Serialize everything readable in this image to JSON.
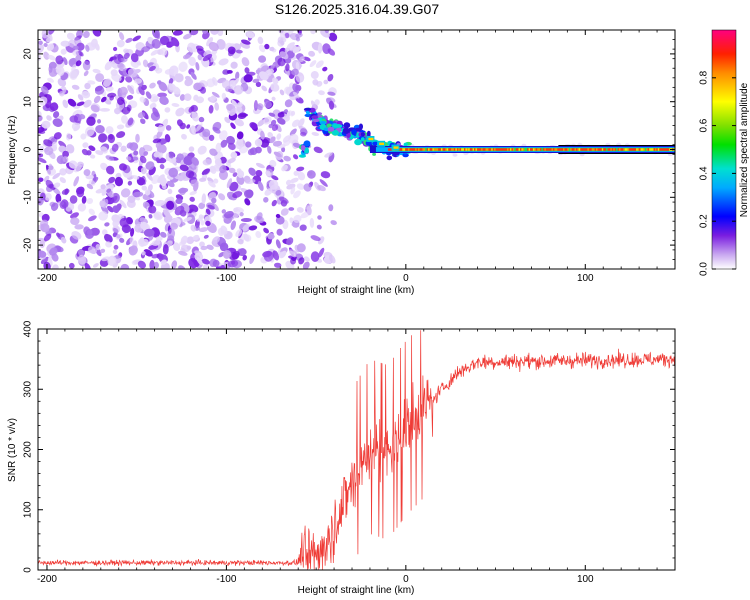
{
  "title": "S126.2025.316.04.39.G07",
  "chart_data": [
    {
      "type": "heatmap",
      "name": "spectrogram",
      "xlabel": "Height of straight line (km)",
      "ylabel": "Frequency (Hz)",
      "xlim": [
        -205,
        150
      ],
      "ylim": [
        -25,
        25
      ],
      "xticks": [
        -200,
        -100,
        0,
        100
      ],
      "yticks": [
        -20,
        -10,
        0,
        10,
        20
      ],
      "colorbar": {
        "label": "Normalized spectral amplitude",
        "range": [
          0.0,
          1.0
        ],
        "ticks": [
          "0.0",
          "0.2",
          "0.4",
          "0.6",
          "0.8"
        ]
      },
      "features": {
        "noise_region_x": [
          -205,
          -50
        ],
        "signal_trace": [
          {
            "x": -55,
            "y": 8
          },
          {
            "x": -45,
            "y": 5
          },
          {
            "x": -35,
            "y": 4
          },
          {
            "x": -25,
            "y": 3
          },
          {
            "x": -18,
            "y": 1
          },
          {
            "x": -10,
            "y": 0
          },
          {
            "x": 0,
            "y": 0
          },
          {
            "x": 50,
            "y": 0
          },
          {
            "x": 100,
            "y": 0
          },
          {
            "x": 150,
            "y": 0
          }
        ]
      }
    },
    {
      "type": "line",
      "name": "snr",
      "xlabel": "Height of straight line (km)",
      "ylabel": "SNR (10 * v/v)",
      "xlim": [
        -205,
        150
      ],
      "ylim": [
        0,
        400
      ],
      "xticks": [
        -200,
        -100,
        0,
        100
      ],
      "yticks": [
        0,
        100,
        200,
        300,
        400
      ],
      "color": "#ef3b36",
      "series": [
        {
          "name": "SNR",
          "profile": [
            {
              "x": -205,
              "y": 12
            },
            {
              "x": -60,
              "y": 12
            },
            {
              "x": -50,
              "y": 25
            },
            {
              "x": -40,
              "y": 70
            },
            {
              "x": -30,
              "y": 150
            },
            {
              "x": -20,
              "y": 200
            },
            {
              "x": -10,
              "y": 190
            },
            {
              "x": 0,
              "y": 230
            },
            {
              "x": 10,
              "y": 260
            },
            {
              "x": 20,
              "y": 300
            },
            {
              "x": 30,
              "y": 330
            },
            {
              "x": 40,
              "y": 345
            },
            {
              "x": 100,
              "y": 348
            },
            {
              "x": 150,
              "y": 350
            }
          ]
        }
      ]
    }
  ]
}
